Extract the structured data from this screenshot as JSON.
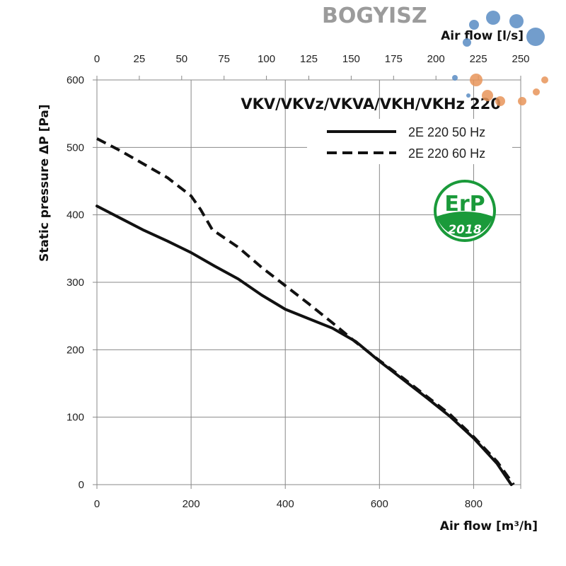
{
  "chart_data": {
    "type": "line",
    "title": "VKV/VKVz/VKVA/VKH/VKHz 220",
    "xlabel": "Air flow [m³/h]",
    "xlabel_top": "Air flow [l/s]",
    "ylabel": "Static pressure ΔP [Pa]",
    "xlim": [
      0,
      900
    ],
    "ylim": [
      0,
      600
    ],
    "xticks": [
      "0",
      "200",
      "400",
      "600",
      "800"
    ],
    "xticks_top": [
      "0",
      "25",
      "50",
      "75",
      "100",
      "125",
      "150",
      "175",
      "200",
      "225",
      "250"
    ],
    "yticks": [
      "0",
      "100",
      "200",
      "300",
      "400",
      "500",
      "600"
    ],
    "grid": true,
    "legend_position": "top-right",
    "series": [
      {
        "name": "2E 220 50 Hz",
        "style": "solid",
        "x": [
          0,
          50,
          100,
          150,
          200,
          250,
          300,
          350,
          400,
          450,
          500,
          550,
          600,
          650,
          700,
          750,
          800,
          850,
          880
        ],
        "y": [
          413,
          395,
          377,
          361,
          344,
          324,
          305,
          281,
          260,
          246,
          232,
          212,
          183,
          156,
          129,
          101,
          69,
          31,
          0
        ]
      },
      {
        "name": "2E 220 60 Hz",
        "style": "dashed",
        "x": [
          0,
          50,
          100,
          150,
          200,
          220,
          245,
          300,
          350,
          400,
          450,
          500,
          550,
          600,
          650,
          700,
          750,
          800,
          850,
          885
        ],
        "y": [
          513,
          495,
          475,
          455,
          428,
          408,
          378,
          352,
          322,
          295,
          268,
          240,
          211,
          184,
          158,
          131,
          104,
          71,
          34,
          0
        ]
      }
    ]
  },
  "badge": {
    "line1": "ErP",
    "line2": "2018",
    "color": "#1a9a3a"
  },
  "watermark": {
    "text": "BOGYISZ",
    "blue": "#5a8cc4",
    "orange": "#e8955a"
  }
}
